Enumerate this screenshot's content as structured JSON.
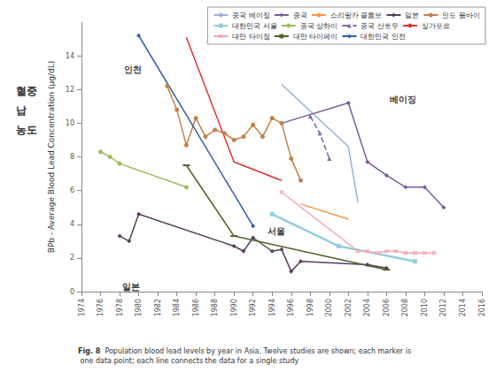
{
  "chart_data": {
    "type": "line",
    "y_label": "BPb - Average Blood Lead Concentration (μg/dL)",
    "left_label": "혈중 납 농도",
    "caption_label": "Fig. 8",
    "caption": "Population blood lead levels by year in Asia. Twelve studies are shown; each marker is one data point; each line connects the data for a single study",
    "xlim": [
      1974,
      2016
    ],
    "xticks": [
      1974,
      1976,
      1978,
      1980,
      1982,
      1984,
      1986,
      1988,
      1990,
      1992,
      1994,
      1996,
      1998,
      2000,
      2002,
      2004,
      2006,
      2008,
      2010,
      2012,
      2014,
      2016
    ],
    "ylim": [
      0,
      16
    ],
    "yticks": [
      0,
      2,
      4,
      6,
      8,
      10,
      12,
      14
    ],
    "grid": false,
    "legend": "top-right",
    "series": [
      {
        "name": "중국 베이징",
        "color": "#95b3d7",
        "marker": "none",
        "line_style": "solid",
        "x": [
          1995,
          2002,
          2003
        ],
        "values": [
          12.3,
          8.6,
          5.3
        ]
      },
      {
        "name": "중국",
        "color": "#7a5a9e",
        "marker": "diamond",
        "line_style": "solid",
        "x": [
          1995,
          2002,
          2004,
          2006,
          2008,
          2010,
          2012
        ],
        "values": [
          10.0,
          11.2,
          7.7,
          6.9,
          6.2,
          6.2,
          5.0
        ]
      },
      {
        "name": "스리랑카 콜롬보",
        "color": "#f79646",
        "marker": "none",
        "line_style": "solid",
        "x": [
          1997,
          2002
        ],
        "values": [
          5.2,
          4.3
        ]
      },
      {
        "name": "일본",
        "color": "#5a3d5c",
        "marker": "diamond",
        "line_style": "solid",
        "x": [
          1978,
          1979,
          1980,
          1990,
          1991,
          1992,
          1994,
          1995,
          1996,
          1997,
          2004,
          2006
        ],
        "values": [
          3.3,
          3.0,
          4.6,
          2.7,
          2.4,
          3.2,
          2.4,
          2.5,
          1.2,
          1.8,
          1.6,
          1.4
        ]
      },
      {
        "name": "인도 뭄바이",
        "color": "#c0804a",
        "marker": "circle",
        "line_style": "solid",
        "x": [
          1983,
          1984,
          1985,
          1986,
          1987,
          1988,
          1989,
          1990,
          1991,
          1992,
          1993,
          1994,
          1995,
          1996,
          1997
        ],
        "values": [
          12.2,
          10.8,
          8.7,
          10.3,
          9.2,
          9.6,
          9.4,
          9.0,
          9.2,
          9.9,
          9.2,
          10.3,
          10.0,
          7.9,
          6.6
        ]
      },
      {
        "name": "대한민국 서울",
        "color": "#93cddd",
        "marker": "square",
        "line_style": "solid",
        "x": [
          1994,
          2001,
          2009
        ],
        "values": [
          4.6,
          2.7,
          1.8
        ]
      },
      {
        "name": "중국 상하이",
        "color": "#9bbb59",
        "marker": "circle",
        "line_style": "solid",
        "x": [
          1976,
          1977,
          1978,
          1985
        ],
        "values": [
          8.3,
          8.0,
          7.6,
          6.2
        ]
      },
      {
        "name": "중국 산토우",
        "color": "#8064a2",
        "marker": "triangle",
        "line_style": "dashed",
        "x": [
          1998,
          1999,
          2000
        ],
        "values": [
          10.4,
          9.4,
          7.9
        ]
      },
      {
        "name": "싱가포르",
        "color": "#e03030",
        "marker": "none",
        "line_style": "solid",
        "x": [
          1985,
          1990,
          1995
        ],
        "values": [
          15.1,
          7.7,
          6.6
        ]
      },
      {
        "name": "대만 타이정",
        "color": "#f2a7b5",
        "marker": "x",
        "line_style": "solid",
        "x": [
          1995,
          2003,
          2004,
          2005,
          2006,
          2007,
          2008,
          2009,
          2010,
          2011
        ],
        "values": [
          5.9,
          2.4,
          2.4,
          2.3,
          2.4,
          2.4,
          2.3,
          2.3,
          2.3,
          2.3
        ]
      },
      {
        "name": "대만 타이페이",
        "color": "#4f6228",
        "marker": "dash",
        "line_style": "solid",
        "x": [
          1985,
          1990,
          2006
        ],
        "values": [
          7.5,
          3.3,
          1.3
        ]
      },
      {
        "name": "대한민국 인천",
        "color": "#2f5fa7",
        "marker": "diamond",
        "line_style": "solid",
        "x": [
          1980,
          1992
        ],
        "values": [
          15.2,
          3.9
        ]
      }
    ],
    "annotations": [
      {
        "text": "인천",
        "x": 1979.4,
        "y": 13.2
      },
      {
        "text": "베이징",
        "x": 2007.7,
        "y": 11.4
      },
      {
        "text": "서울",
        "x": 1994.4,
        "y": 3.6
      },
      {
        "text": "일본",
        "x": 1979.2,
        "y": 0.3
      }
    ]
  }
}
